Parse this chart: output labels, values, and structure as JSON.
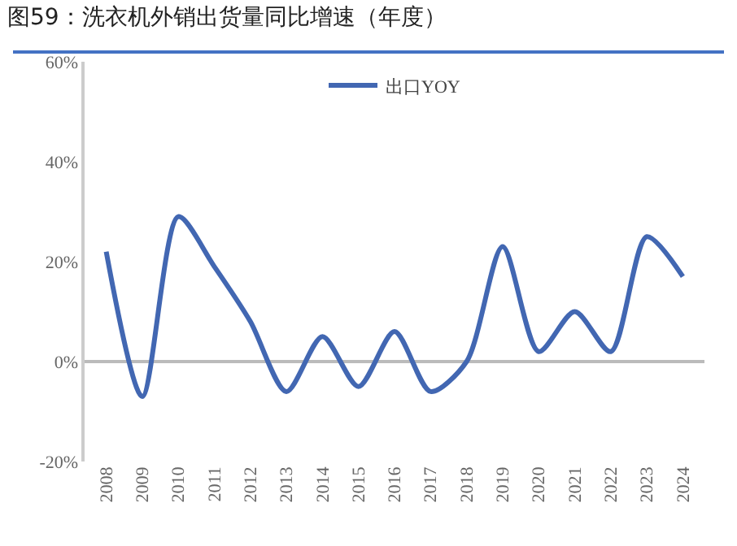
{
  "chart_data": {
    "type": "line",
    "title": "图59：洗衣机外销出货量同比增速（年度）",
    "categories": [
      "2008",
      "2009",
      "2010",
      "2011",
      "2012",
      "2013",
      "2014",
      "2015",
      "2016",
      "2017",
      "2018",
      "2019",
      "2020",
      "2021",
      "2022",
      "2023",
      "2024"
    ],
    "series": [
      {
        "name": "出口YOY",
        "color": "#4267b2",
        "values": [
          22,
          -7,
          29,
          19,
          8,
          -6,
          5,
          -5,
          6,
          -6,
          0,
          23,
          2,
          10,
          2,
          25,
          17
        ]
      }
    ],
    "ylim": [
      -20,
      60
    ],
    "yticks": [
      {
        "value": -20,
        "label": "-20%"
      },
      {
        "value": 0,
        "label": "0%"
      },
      {
        "value": 20,
        "label": "20%"
      },
      {
        "value": 40,
        "label": "40%"
      },
      {
        "value": 60,
        "label": "60%"
      }
    ],
    "legend": "top",
    "marker": "none",
    "line_style": "solid"
  }
}
